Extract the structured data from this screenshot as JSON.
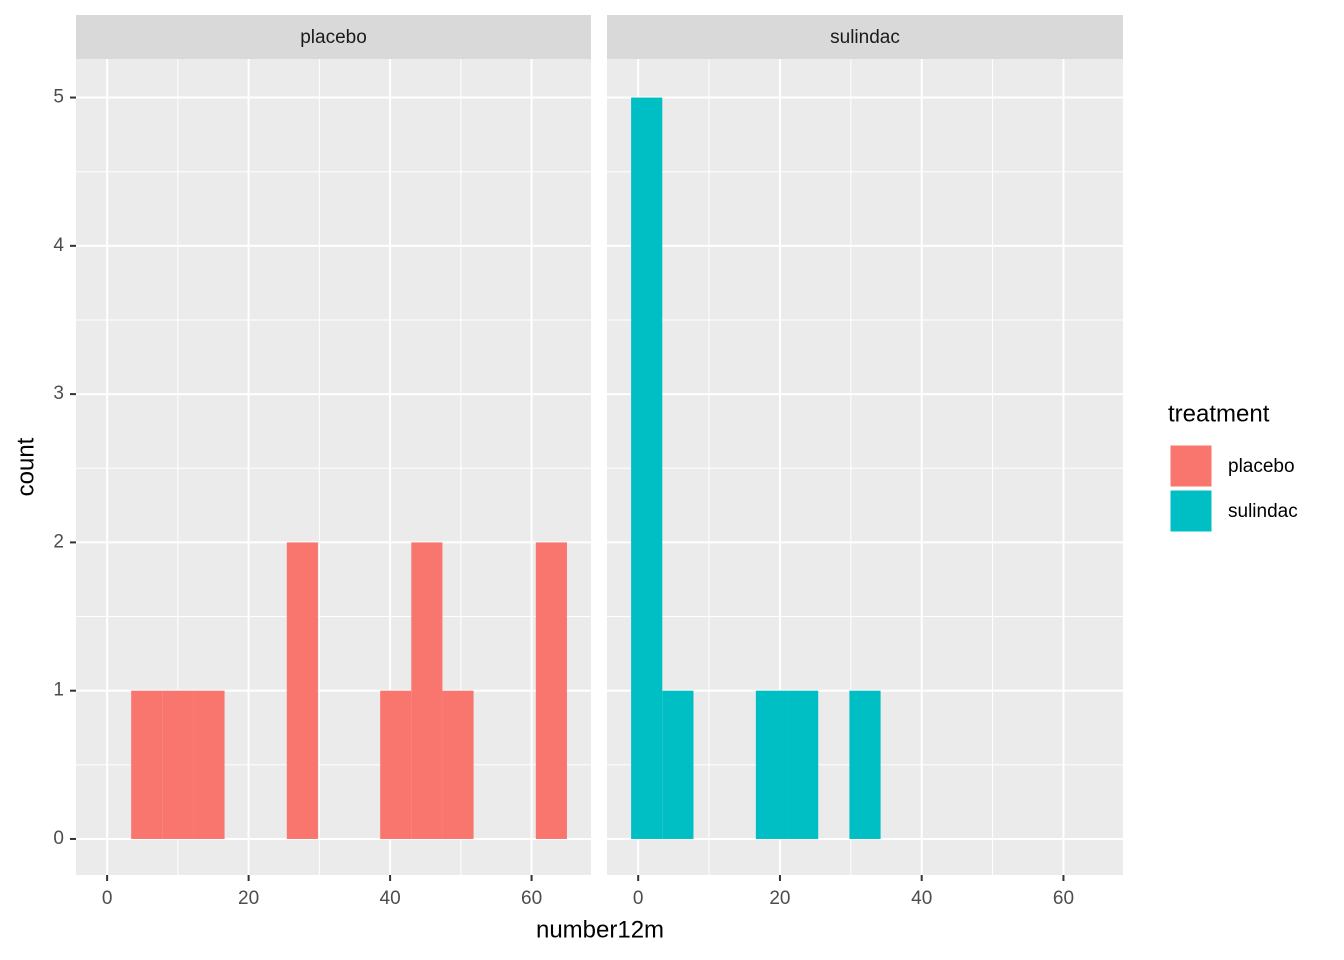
{
  "chart_data": {
    "type": "histogram",
    "x_label": "number12m",
    "y_label": "count",
    "bins": [
      -1.0,
      3.4,
      7.8,
      12.2,
      16.6,
      21.0,
      25.4,
      29.8,
      34.2,
      38.6,
      43.0,
      47.4,
      51.8,
      56.2,
      60.6,
      65.0
    ],
    "series": [
      {
        "name": "placebo",
        "color": "#f8766d",
        "values": [
          0,
          1,
          1,
          1,
          0,
          0,
          2,
          0,
          0,
          1,
          2,
          1,
          0,
          0,
          2
        ]
      },
      {
        "name": "sulindac",
        "color": "#00bfc4",
        "values": [
          5,
          1,
          0,
          0,
          1,
          1,
          0,
          1,
          0,
          0,
          0,
          0,
          0,
          0,
          0
        ]
      }
    ],
    "xlim": [
      -4.4,
      68.4
    ],
    "ylim": [
      -0.243,
      5.26
    ],
    "xticks": [
      0,
      20,
      40,
      60
    ],
    "yticks": [
      0,
      1,
      2,
      3,
      4,
      5
    ],
    "grid": true,
    "legend_title": "treatment",
    "legend": "right"
  }
}
